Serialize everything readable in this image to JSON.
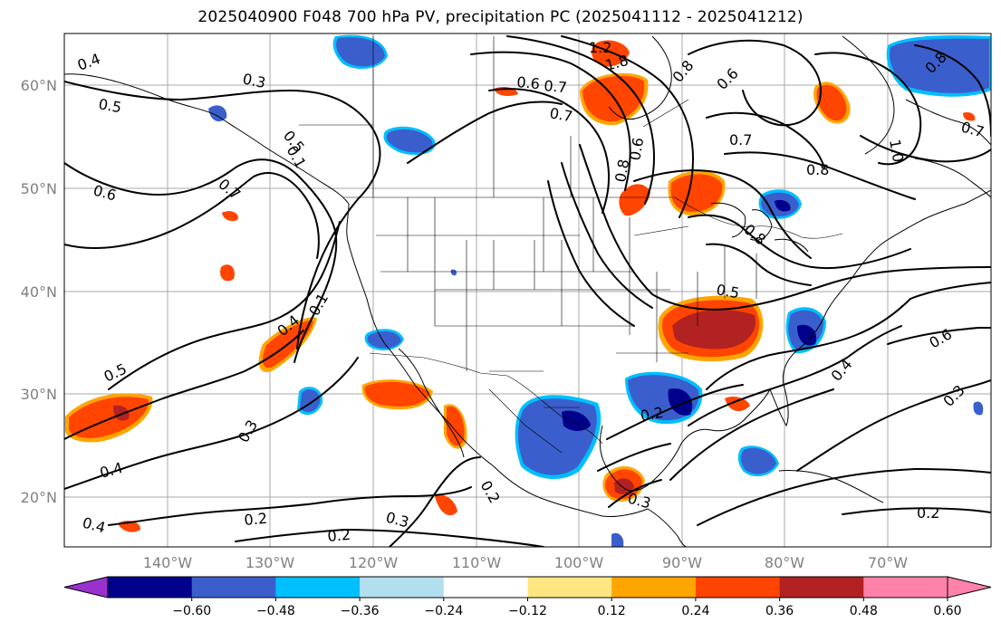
{
  "title": "2025040900 F048 700 hPa PV, precipitation PC (2025041112 - 2025041212)",
  "lat_labels": [
    "60°N",
    "50°N",
    "40°N",
    "30°N",
    "20°N"
  ],
  "lon_labels": [
    "140°W",
    "130°W",
    "120°W",
    "110°W",
    "100°W",
    "90°W",
    "80°W",
    "70°W"
  ],
  "contour_labels": [
    "0.4",
    "0.3",
    "0.5",
    "0.6",
    "0.7",
    "0.1",
    "0.5",
    "0.4",
    "0.3",
    "0.4",
    "0.2",
    "0.2",
    "0.3",
    "0.4",
    "1.2",
    "1.8",
    "0.6",
    "0.7",
    "0.8",
    "0.6",
    "0.8",
    "0.7",
    "0.8",
    "0.5",
    "0.2",
    "0.3",
    "0.4",
    "0.6",
    "0.3",
    "0.2",
    "1.0",
    "0.7",
    "0.8",
    "0.6",
    "0.7",
    "0.8",
    "0.2",
    "0.1",
    "0.5"
  ],
  "colorbar": {
    "ticks": [
      "−0.60",
      "−0.48",
      "−0.36",
      "−0.24",
      "−0.12",
      "0.12",
      "0.24",
      "0.36",
      "0.48",
      "0.60"
    ],
    "colors": [
      "#9932cc",
      "#00008b",
      "#3a5fcd",
      "#00bfff",
      "#b2dfee",
      "#ffffff",
      "#ffe680",
      "#ffa500",
      "#ff4500",
      "#b22222",
      "#ff82ab",
      "#ff82ab"
    ]
  },
  "colors": {
    "grid": "#a8a8a8",
    "axis_label": "#808080",
    "pos_low": "#ffa500",
    "pos_mid": "#ff4500",
    "pos_high": "#b22222",
    "neg_low": "#00bfff",
    "neg_mid": "#3a5fcd",
    "neg_high": "#00008b"
  }
}
